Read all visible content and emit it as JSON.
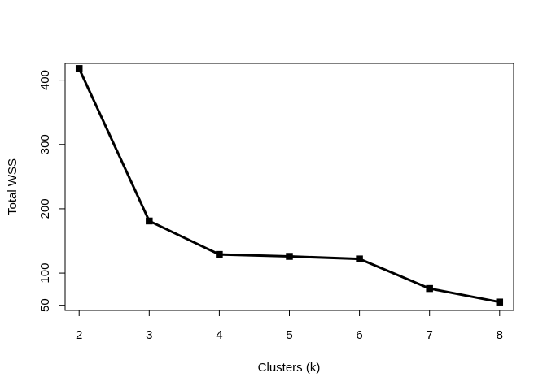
{
  "chart_data": {
    "type": "line",
    "title": "",
    "xlabel": "Clusters (k)",
    "ylabel": "Total WSS",
    "x": [
      2,
      3,
      4,
      5,
      6,
      7,
      8
    ],
    "series": [
      {
        "values": [
          418,
          181,
          129,
          126,
          122,
          76,
          55
        ]
      }
    ],
    "x_ticks": [
      2,
      3,
      4,
      5,
      6,
      7,
      8
    ],
    "y_ticks": [
      50,
      100,
      200,
      300,
      400
    ],
    "xlim": [
      1.8,
      8.2
    ],
    "ylim": [
      42,
      426
    ],
    "grid": false,
    "line_color": "#000000",
    "marker": "filled-square"
  }
}
